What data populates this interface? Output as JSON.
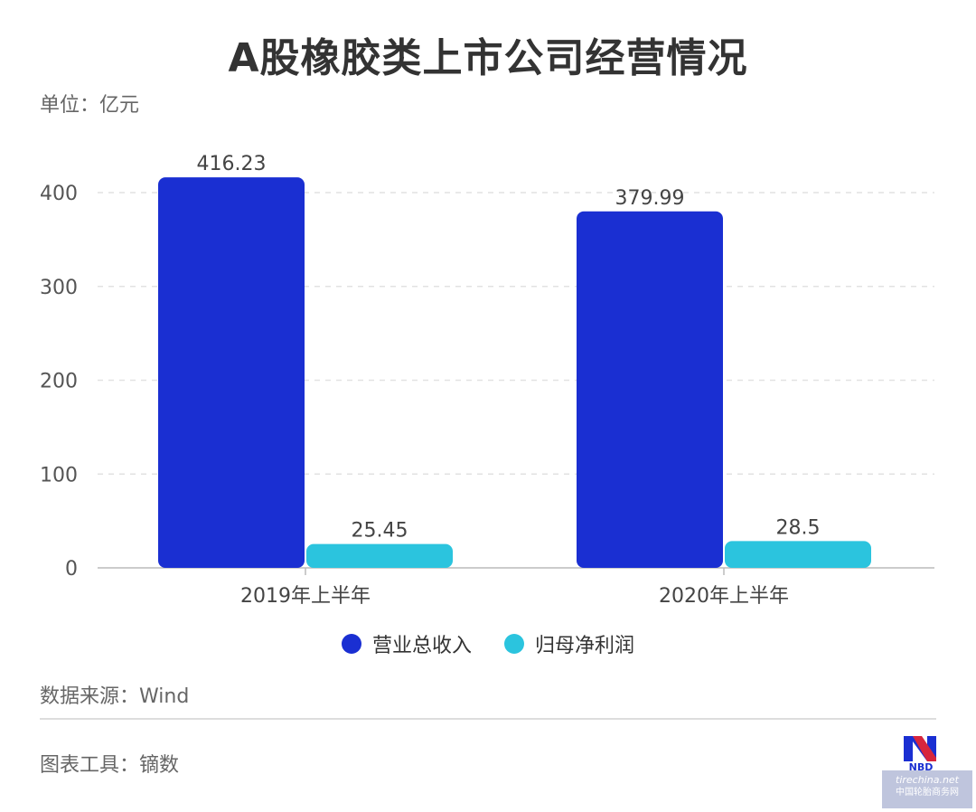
{
  "title": "A股橡胶类上市公司经营情况",
  "unit": "单位：亿元",
  "source": "数据来源：Wind",
  "tool": "图表工具：镝数",
  "logo_text": "NBD",
  "watermark": {
    "top": "tirechina.net",
    "bottom": "中国轮胎商务网"
  },
  "colors": {
    "revenue": "#1a2fd2",
    "profit": "#2bc4de"
  },
  "chart_data": {
    "type": "bar",
    "title": "A股橡胶类上市公司经营情况",
    "ylabel": "单位：亿元",
    "categories": [
      "2019年上半年",
      "2020年上半年"
    ],
    "series": [
      {
        "name": "营业总收入",
        "color": "#1a2fd2",
        "values": [
          416.23,
          379.99
        ],
        "labels": [
          "416.23",
          "379.99"
        ]
      },
      {
        "name": "归母净利润",
        "color": "#2bc4de",
        "values": [
          25.45,
          28.5
        ],
        "labels": [
          "25.45",
          "28.5"
        ]
      }
    ],
    "yticks": [
      0,
      100,
      200,
      300,
      400
    ],
    "ylim": [
      0,
      420
    ],
    "grid": true,
    "legend": "bottom"
  }
}
